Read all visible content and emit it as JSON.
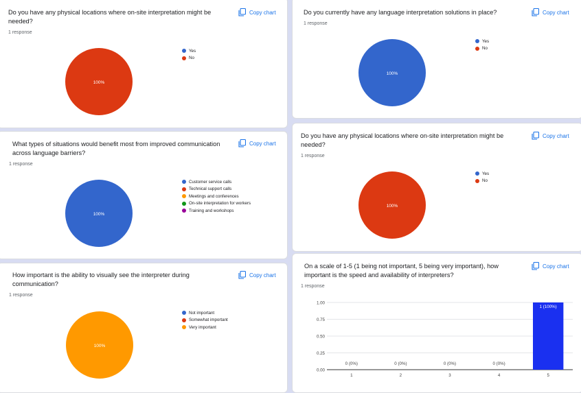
{
  "common": {
    "copy_chart": "Copy chart",
    "responses": "1 response"
  },
  "colors": {
    "blue": "#3366cc",
    "red": "#dc3912",
    "orange": "#ff9900",
    "green": "#109618",
    "purple": "#990099",
    "bar": "#1a30f0",
    "link": "#1a73e8"
  },
  "cards": {
    "c1": {
      "title": "Do you have any physical locations where on-site interpretation might be needed?",
      "legend": [
        "Yes",
        "No"
      ],
      "pie_label": "100%"
    },
    "c2": {
      "title": "Do you currently have any language interpretation solutions in place?",
      "legend": [
        "Yes",
        "No"
      ],
      "pie_label": "100%"
    },
    "c3": {
      "title": "What types of situations would benefit most from improved communication across language barriers?",
      "legend": [
        "Customer service calls",
        "Technical support calls",
        "Meetings and conferences",
        "On-site interpretation for workers",
        "Training and workshops"
      ],
      "pie_label": "100%"
    },
    "c4": {
      "title": "Do you have any physical locations where on-site interpretation might be needed?",
      "legend": [
        "Yes",
        "No"
      ],
      "pie_label": "100%"
    },
    "c5": {
      "title": "How important is the ability to visually see the interpreter during communication?",
      "legend": [
        "Not important",
        "Somewhat important",
        "Very important"
      ],
      "pie_label": "100%"
    },
    "c6": {
      "title": "On a scale of 1-5 (1 being not important, 5 being very important), how important is the speed and availability of interpreters?"
    }
  },
  "chart_data": [
    {
      "type": "pie",
      "categories": [
        "Yes",
        "No"
      ],
      "values": [
        0,
        1
      ],
      "data_labels": [
        "",
        "100%"
      ]
    },
    {
      "type": "pie",
      "categories": [
        "Yes",
        "No"
      ],
      "values": [
        1,
        0
      ],
      "data_labels": [
        "100%",
        ""
      ]
    },
    {
      "type": "pie",
      "categories": [
        "Customer service calls",
        "Technical support calls",
        "Meetings and conferences",
        "On-site interpretation for workers",
        "Training and workshops"
      ],
      "values": [
        1,
        0,
        0,
        0,
        0
      ],
      "data_labels": [
        "100%",
        "",
        "",
        "",
        ""
      ]
    },
    {
      "type": "pie",
      "categories": [
        "Yes",
        "No"
      ],
      "values": [
        0,
        1
      ],
      "data_labels": [
        "",
        "100%"
      ]
    },
    {
      "type": "pie",
      "categories": [
        "Not important",
        "Somewhat important",
        "Very important"
      ],
      "values": [
        0,
        0,
        1
      ],
      "data_labels": [
        "",
        "",
        "100%"
      ]
    },
    {
      "type": "bar",
      "categories": [
        "1",
        "2",
        "3",
        "4",
        "5"
      ],
      "values": [
        0,
        0,
        0,
        0,
        1
      ],
      "data_labels": [
        "0 (0%)",
        "0 (0%)",
        "0 (0%)",
        "0 (0%)",
        "1 (100%)"
      ],
      "yticks": [
        "0.00",
        "0.25",
        "0.50",
        "0.75",
        "1.00"
      ],
      "ylim": [
        0,
        1
      ],
      "grid": true
    }
  ]
}
